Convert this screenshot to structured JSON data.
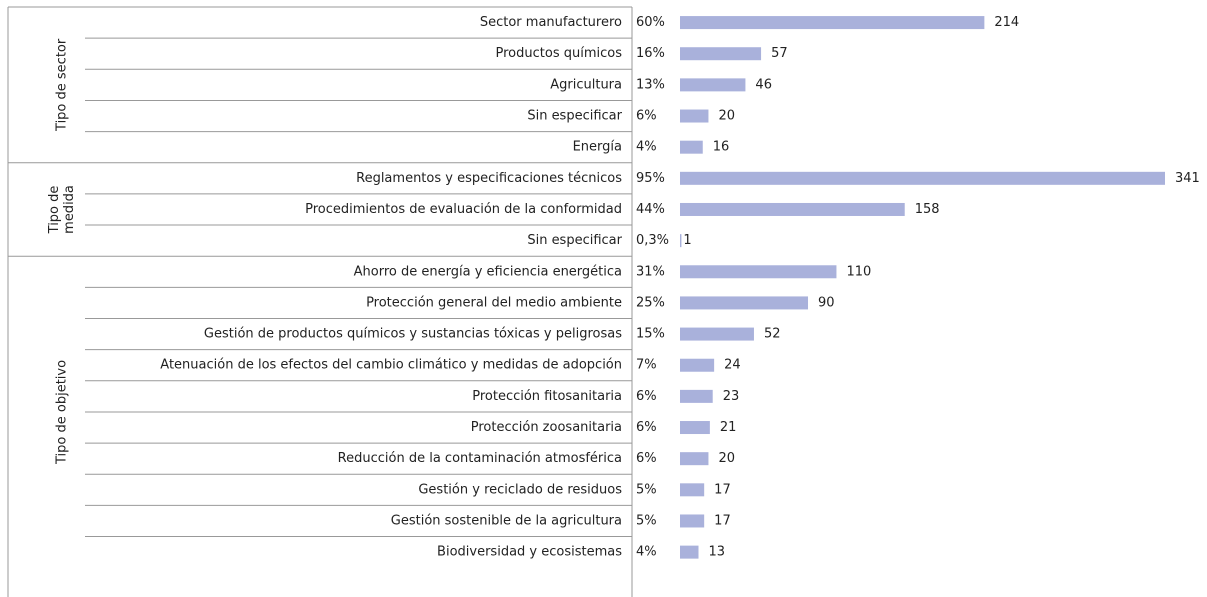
{
  "chart_data": {
    "type": "bar",
    "orientation": "horizontal",
    "color": "#a9b1db",
    "groups": [
      {
        "name": [
          "Tipo de sector"
        ],
        "categories": [
          "Sector manufacturero",
          "Productos químicos",
          "Agricultura",
          "Sin especificar",
          "Energía"
        ],
        "shares": [
          "60%",
          "16%",
          "13%",
          "6%",
          "4%"
        ],
        "values": [
          214,
          57,
          46,
          20,
          16
        ]
      },
      {
        "name": [
          "Tipo de",
          "medida"
        ],
        "categories": [
          "Reglamentos y especificaciones técnicos",
          "Procedimientos de evaluación de la conformidad",
          "Sin especificar"
        ],
        "shares": [
          "95%",
          "44%",
          "0,3%"
        ],
        "values": [
          341,
          158,
          1
        ]
      },
      {
        "name": [
          "Tipo de objetivo"
        ],
        "categories": [
          "Ahorro de energía y eficiencia energética",
          "Protección general del medio ambiente",
          "Gestión de productos químicos y sustancias tóxicas y peligrosas",
          "Atenuación de los efectos del cambio climático y medidas de adopción",
          "Protección fitosanitaria",
          "Protección zoosanitaria",
          "Reducción de la contaminación atmosférica",
          "Gestión y reciclado de residuos",
          "Gestión sostenible de la agricultura",
          "Biodiversidad y ecosistemas"
        ],
        "shares": [
          "31%",
          "25%",
          "15%",
          "7%",
          "6%",
          "6%",
          "6%",
          "5%",
          "5%",
          "4%"
        ],
        "values": [
          110,
          90,
          52,
          24,
          23,
          21,
          20,
          17,
          17,
          13
        ]
      }
    ]
  }
}
